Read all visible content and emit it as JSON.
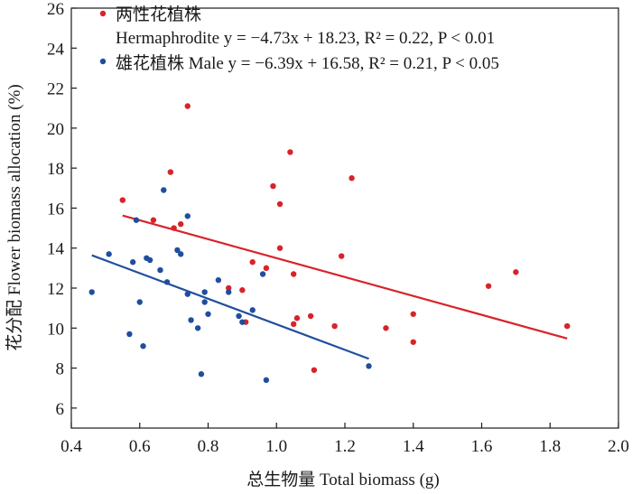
{
  "chart_data": {
    "type": "scatter",
    "xlabel": "总生物量 Total biomass (g)",
    "ylabel": "花分配 Flower biomass allocation (%)",
    "xlim": [
      0.4,
      2.0
    ],
    "ylim": [
      5,
      26
    ],
    "x_ticks": [
      "0.4",
      "0.6",
      "0.8",
      "1.0",
      "1.2",
      "1.4",
      "1.6",
      "1.8",
      "2.0"
    ],
    "y_ticks": [
      "6",
      "8",
      "10",
      "12",
      "14",
      "16",
      "18",
      "20",
      "22",
      "24",
      "26"
    ],
    "grid": false,
    "legend_position": "top-left",
    "legend": {
      "hermaphrodite_cn": "两性花植株",
      "hermaphrodite_eq": "Hermaphrodite y = −4.73x + 18.23, R² = 0.22, P < 0.01",
      "male_eq": "雄花植株 Male y = −6.39x + 16.58, R² = 0.21, P < 0.05"
    },
    "series": [
      {
        "name": "两性花植株 Hermaphrodite",
        "color": "#d8232a",
        "fit": {
          "slope": -4.73,
          "intercept": 18.23,
          "x_range": [
            0.55,
            1.85
          ]
        },
        "points": [
          [
            0.55,
            16.4
          ],
          [
            0.64,
            15.4
          ],
          [
            0.69,
            17.8
          ],
          [
            0.7,
            15.0
          ],
          [
            0.72,
            15.2
          ],
          [
            0.74,
            21.1
          ],
          [
            0.86,
            12.0
          ],
          [
            0.9,
            11.9
          ],
          [
            0.91,
            10.3
          ],
          [
            0.93,
            13.3
          ],
          [
            0.97,
            13.0
          ],
          [
            0.99,
            17.1
          ],
          [
            1.01,
            16.2
          ],
          [
            1.01,
            14.0
          ],
          [
            1.04,
            18.8
          ],
          [
            1.05,
            12.7
          ],
          [
            1.05,
            10.2
          ],
          [
            1.06,
            10.5
          ],
          [
            1.1,
            10.6
          ],
          [
            1.11,
            7.9
          ],
          [
            1.17,
            10.1
          ],
          [
            1.19,
            13.6
          ],
          [
            1.22,
            17.5
          ],
          [
            1.32,
            10.0
          ],
          [
            1.4,
            10.7
          ],
          [
            1.4,
            9.3
          ],
          [
            1.62,
            12.1
          ],
          [
            1.7,
            12.8
          ],
          [
            1.85,
            10.1
          ]
        ]
      },
      {
        "name": "雄花植株 Male",
        "color": "#1f4e9e",
        "fit": {
          "slope": -6.39,
          "intercept": 16.58,
          "x_range": [
            0.46,
            1.27
          ]
        },
        "points": [
          [
            0.46,
            11.8
          ],
          [
            0.51,
            13.7
          ],
          [
            0.57,
            9.7
          ],
          [
            0.58,
            13.3
          ],
          [
            0.59,
            15.4
          ],
          [
            0.6,
            11.3
          ],
          [
            0.61,
            9.1
          ],
          [
            0.62,
            13.5
          ],
          [
            0.63,
            13.4
          ],
          [
            0.66,
            12.9
          ],
          [
            0.67,
            16.9
          ],
          [
            0.68,
            12.3
          ],
          [
            0.71,
            13.9
          ],
          [
            0.72,
            13.7
          ],
          [
            0.74,
            15.6
          ],
          [
            0.74,
            11.7
          ],
          [
            0.75,
            10.4
          ],
          [
            0.77,
            10.0
          ],
          [
            0.78,
            7.7
          ],
          [
            0.79,
            11.8
          ],
          [
            0.79,
            11.3
          ],
          [
            0.8,
            10.7
          ],
          [
            0.83,
            12.4
          ],
          [
            0.86,
            11.8
          ],
          [
            0.89,
            10.6
          ],
          [
            0.9,
            10.3
          ],
          [
            0.93,
            10.9
          ],
          [
            0.96,
            12.7
          ],
          [
            0.97,
            7.4
          ],
          [
            1.27,
            8.1
          ]
        ]
      }
    ]
  }
}
